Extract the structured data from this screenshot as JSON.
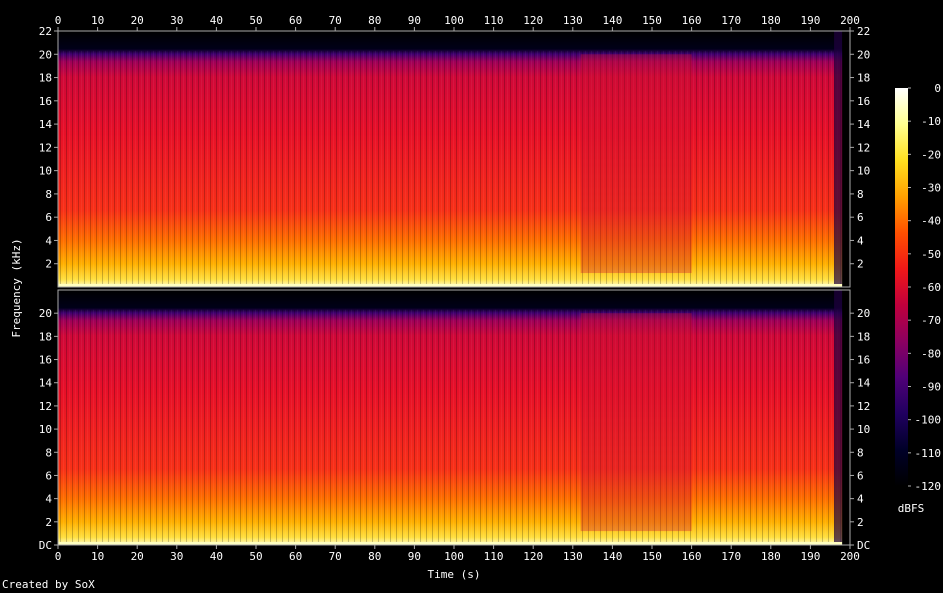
{
  "chart_data": {
    "type": "heatmap",
    "title": "",
    "xlabel": "Time (s)",
    "ylabel": "Frequency (kHz)",
    "xlim": [
      0,
      200
    ],
    "x_ticks": [
      "0",
      "10",
      "20",
      "30",
      "40",
      "50",
      "60",
      "70",
      "80",
      "90",
      "100",
      "110",
      "120",
      "130",
      "140",
      "150",
      "160",
      "170",
      "180",
      "190",
      "200"
    ],
    "channels": [
      {
        "ylim": [
          0,
          22
        ],
        "y_ticks": [
          "2",
          "4",
          "6",
          "8",
          "10",
          "12",
          "14",
          "16",
          "18",
          "20",
          "22"
        ]
      },
      {
        "ylim": [
          0,
          22
        ],
        "y_ticks": [
          "DC",
          "2",
          "4",
          "6",
          "8",
          "10",
          "12",
          "14",
          "16",
          "18",
          "20"
        ]
      }
    ],
    "content_cutoff_khz": 20,
    "audio_end_s": 198,
    "quiet_segments_s": [
      [
        132,
        160
      ]
    ],
    "colorbar": {
      "label": "dBFS",
      "range": [
        -120,
        0
      ],
      "ticks": [
        "0",
        "-10",
        "-20",
        "-30",
        "-40",
        "-50",
        "-60",
        "-70",
        "-80",
        "-90",
        "-100",
        "-110",
        "-120"
      ],
      "colors": [
        "#ffffff",
        "#ffff90",
        "#ffe020",
        "#ffa000",
        "#ff5000",
        "#f01818",
        "#c0003c",
        "#8c0060",
        "#500078",
        "#200060",
        "#000028",
        "#000000"
      ]
    }
  },
  "footer": {
    "credit": "Created by SoX"
  }
}
